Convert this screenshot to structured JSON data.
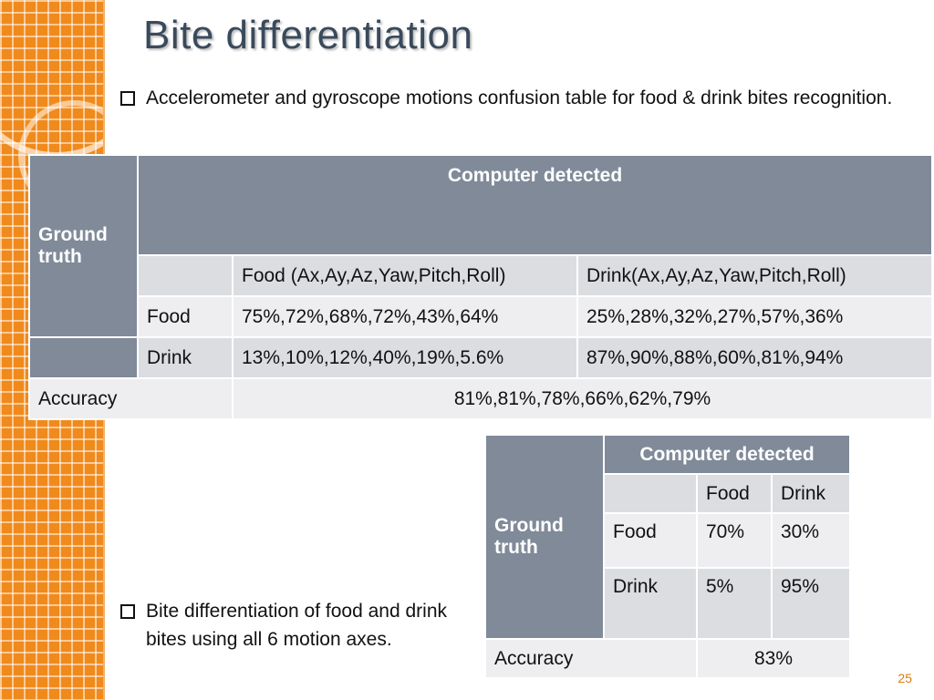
{
  "slide": {
    "title": "Bite differentiation",
    "bullet1": "Accelerometer and gyroscope motions confusion table for food & drink bites recognition.",
    "bullet2": "Bite differentiation of food and drink bites using all 6 motion axes.",
    "page_number": "25"
  },
  "table1": {
    "ground_truth": "Ground truth",
    "computer_detected": "Computer detected",
    "col_food": "Food (Ax,Ay,Az,Yaw,Pitch,Roll)",
    "col_drink": "Drink(Ax,Ay,Az,Yaw,Pitch,Roll)",
    "rows": [
      {
        "label": "Food",
        "food": "75%,72%,68%,72%,43%,64%",
        "drink": "25%,28%,32%,27%,57%,36%"
      },
      {
        "label": "Drink",
        "food": "13%,10%,12%,40%,19%,5.6%",
        "drink": "87%,90%,88%,60%,81%,94%"
      }
    ],
    "accuracy_label": "Accuracy",
    "accuracy_value": "81%,81%,78%,66%,62%,79%"
  },
  "table2": {
    "ground_truth": "Ground truth",
    "computer_detected": "Computer detected",
    "col_food": "Food",
    "col_drink": "Drink",
    "rows": [
      {
        "label": "Food",
        "food": "70%",
        "drink": "30%"
      },
      {
        "label": "Drink",
        "food": "5%",
        "drink": "95%"
      }
    ],
    "accuracy_label": "Accuracy",
    "accuracy_value": "83%"
  }
}
